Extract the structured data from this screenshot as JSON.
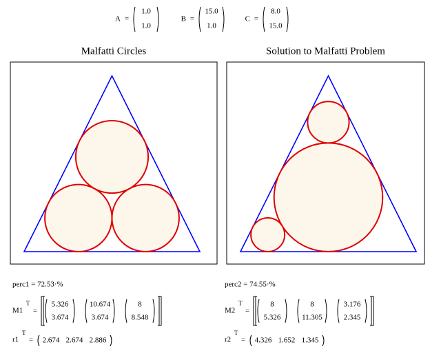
{
  "eq": "=",
  "transpose": "T",
  "points": [
    {
      "name": "A",
      "coords": [
        {
          "value": 1,
          "label": "1.0"
        },
        {
          "value": 1,
          "label": "1.0"
        }
      ]
    },
    {
      "name": "B",
      "coords": [
        {
          "value": 15,
          "label": "15.0"
        },
        {
          "value": 1,
          "label": "1.0"
        }
      ]
    },
    {
      "name": "C",
      "coords": [
        {
          "value": 8,
          "label": "8.0"
        },
        {
          "value": 15,
          "label": "15.0"
        }
      ]
    }
  ],
  "results": [
    {
      "title": "Malfatti Circles",
      "perc": "perc1 = 72.53·%",
      "matrix_name": "M1",
      "vector_name": "r1",
      "centers": [
        [
          5.326,
          3.674
        ],
        [
          10.674,
          3.674
        ],
        [
          8,
          8.548
        ]
      ],
      "radii": [
        2.674,
        2.674,
        2.886
      ]
    },
    {
      "title": "Solution to Malfatti Problem",
      "perc": "perc2 = 74.55·%",
      "matrix_name": "M2",
      "vector_name": "r2",
      "centers": [
        [
          8,
          5.326
        ],
        [
          8,
          11.305
        ],
        [
          3.176,
          2.345
        ]
      ],
      "radii": [
        4.326,
        1.652,
        1.345
      ]
    }
  ]
}
